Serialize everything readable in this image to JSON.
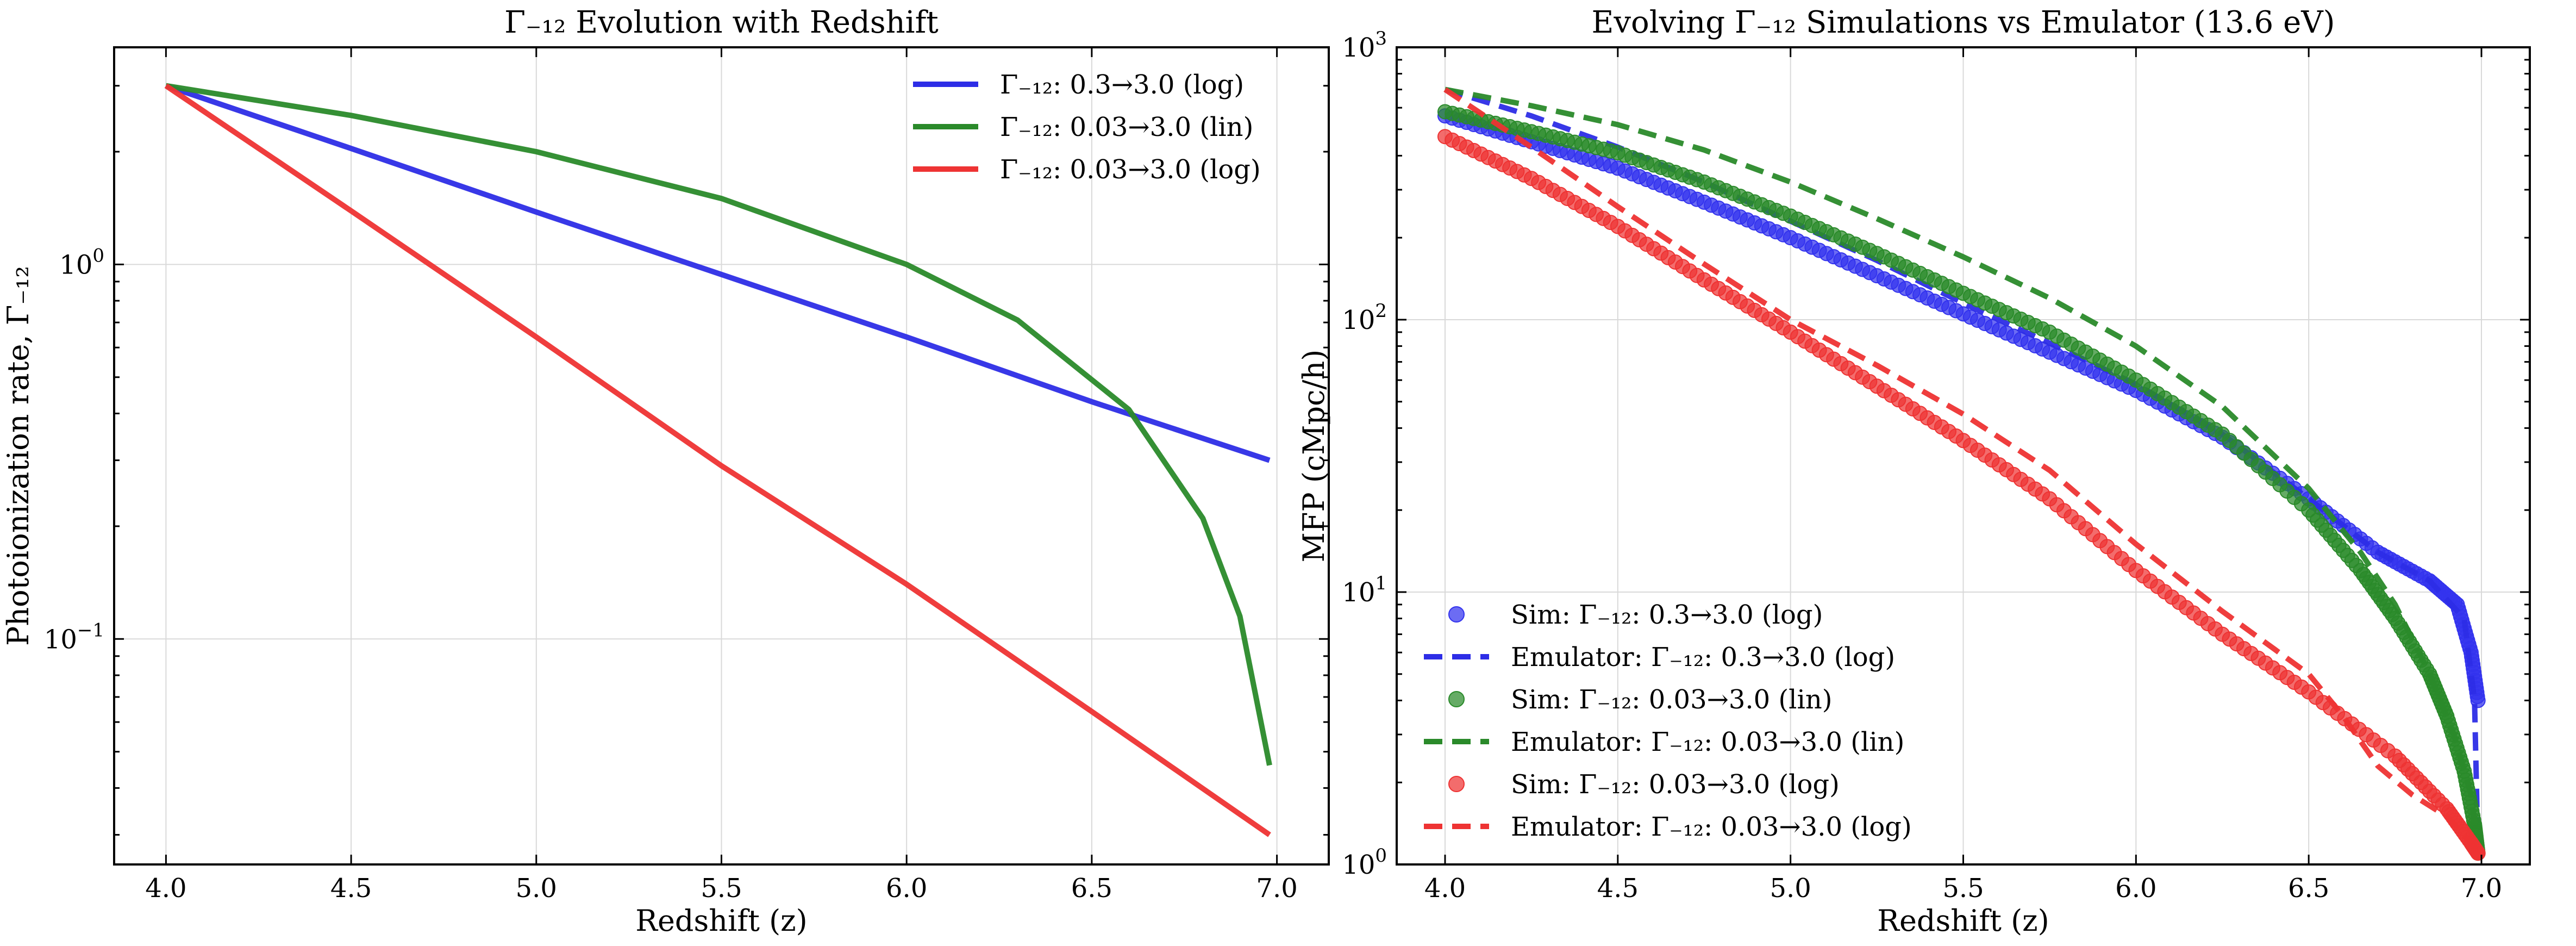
{
  "chart_data": [
    {
      "type": "line",
      "title": "Γ₋₁₂ Evolution with Redshift",
      "xlabel": "Redshift (z)",
      "ylabel": "Photoionization rate, Γ₋₁₂",
      "xscale": "linear",
      "yscale": "log",
      "xlim": [
        3.86,
        7.14
      ],
      "ylim": [
        0.025,
        3.8
      ],
      "xticks": [
        4.0,
        4.5,
        5.0,
        5.5,
        6.0,
        6.5,
        7.0
      ],
      "xtick_labels": [
        "4.0",
        "4.5",
        "5.0",
        "5.5",
        "6.0",
        "6.5",
        "7.0"
      ],
      "yticks": [
        {
          "value": 1,
          "base": "10",
          "exp": "0"
        },
        {
          "value": 0.1,
          "base": "10",
          "exp": "−1"
        }
      ],
      "grid": true,
      "legend_position": "upper-right",
      "series": [
        {
          "name": "Γ₋₁₂: 0.3→3.0 (log)",
          "color": "#2d2de6",
          "style": "solid",
          "x": [
            4.0,
            4.5,
            5.0,
            5.5,
            6.0,
            6.5,
            6.98
          ],
          "y": [
            3.0,
            2.04,
            1.38,
            0.94,
            0.64,
            0.43,
            0.3
          ]
        },
        {
          "name": "Γ₋₁₂: 0.03→3.0 (lin)",
          "color": "#2a8a2a",
          "style": "solid",
          "x": [
            4.0,
            4.5,
            5.0,
            5.5,
            6.0,
            6.3,
            6.6,
            6.8,
            6.9,
            6.95,
            6.98
          ],
          "y": [
            3.0,
            2.5,
            2.0,
            1.5,
            1.0,
            0.71,
            0.41,
            0.21,
            0.115,
            0.065,
            0.046
          ]
        },
        {
          "name": "Γ₋₁₂: 0.03→3.0 (log)",
          "color": "#ee3333",
          "style": "solid",
          "x": [
            4.0,
            4.5,
            5.0,
            5.5,
            6.0,
            6.5,
            6.98
          ],
          "y": [
            3.0,
            1.39,
            0.64,
            0.29,
            0.14,
            0.064,
            0.03
          ]
        }
      ]
    },
    {
      "type": "scatter",
      "title": "Evolving Γ₋₁₂ Simulations vs Emulator (13.6 eV)",
      "xlabel": "Redshift (z)",
      "ylabel": "MFP (cMpc/h)",
      "xscale": "linear",
      "yscale": "log",
      "xlim": [
        3.86,
        7.14
      ],
      "ylim": [
        1,
        1000
      ],
      "xticks": [
        4.0,
        4.5,
        5.0,
        5.5,
        6.0,
        6.5,
        7.0
      ],
      "xtick_labels": [
        "4.0",
        "4.5",
        "5.0",
        "5.5",
        "6.0",
        "6.5",
        "7.0"
      ],
      "yticks": [
        {
          "value": 1,
          "base": "10",
          "exp": "0"
        },
        {
          "value": 10,
          "base": "10",
          "exp": "1"
        },
        {
          "value": 100,
          "base": "10",
          "exp": "2"
        },
        {
          "value": 1000,
          "base": "10",
          "exp": "3"
        }
      ],
      "grid": true,
      "legend_position": "lower-left",
      "series": [
        {
          "name": "Sim: Γ₋₁₂: 0.3→3.0 (log)",
          "kind": "scatter",
          "color": "#3333ee",
          "x": [
            4.0,
            4.25,
            4.5,
            4.75,
            5.0,
            5.25,
            5.5,
            5.75,
            6.0,
            6.25,
            6.5,
            6.7,
            6.85,
            6.93,
            6.97,
            6.99
          ],
          "y": [
            560,
            450,
            360,
            270,
            200,
            145,
            105,
            76,
            55,
            37,
            22,
            14,
            11,
            9,
            6,
            4
          ]
        },
        {
          "name": "Emulator: Γ₋₁₂: 0.3→3.0 (log)",
          "kind": "line",
          "color": "#2d2de6",
          "style": "dashed",
          "x": [
            4.0,
            4.25,
            4.5,
            4.75,
            5.0,
            5.25,
            5.5,
            5.75,
            6.0,
            6.25,
            6.5,
            6.7,
            6.85,
            6.95,
            6.98,
            6.99
          ],
          "y": [
            700,
            560,
            430,
            320,
            230,
            165,
            115,
            82,
            58,
            38,
            22,
            14,
            11,
            8,
            4,
            1.1
          ]
        },
        {
          "name": "Sim: Γ₋₁₂: 0.03→3.0 (lin)",
          "kind": "scatter",
          "color": "#2a8a2a",
          "x": [
            4.0,
            4.25,
            4.5,
            4.75,
            5.0,
            5.25,
            5.5,
            5.75,
            6.0,
            6.25,
            6.5,
            6.65,
            6.75,
            6.85,
            6.9,
            6.95,
            6.98,
            6.99
          ],
          "y": [
            580,
            490,
            410,
            320,
            240,
            175,
            125,
            90,
            60,
            38,
            20,
            12,
            8,
            5,
            3.5,
            2.2,
            1.4,
            1.1
          ]
        },
        {
          "name": "Emulator: Γ₋₁₂: 0.03→3.0 (lin)",
          "kind": "line",
          "color": "#2a8a2a",
          "style": "dashed",
          "x": [
            4.0,
            4.25,
            4.5,
            4.75,
            5.0,
            5.25,
            5.5,
            5.75,
            6.0,
            6.25,
            6.5,
            6.65,
            6.75,
            6.85,
            6.92,
            6.97,
            6.99
          ],
          "y": [
            700,
            610,
            520,
            420,
            320,
            235,
            170,
            120,
            80,
            48,
            24,
            14,
            9,
            5,
            3,
            1.8,
            1.1
          ]
        },
        {
          "name": "Sim: Γ₋₁₂: 0.03→3.0 (log)",
          "kind": "scatter",
          "color": "#ee3333",
          "x": [
            4.0,
            4.25,
            4.5,
            4.75,
            5.0,
            5.25,
            5.5,
            5.75,
            6.0,
            6.25,
            6.5,
            6.75,
            6.9,
            6.97,
            6.99
          ],
          "y": [
            470,
            330,
            220,
            140,
            90,
            57,
            36,
            22,
            12,
            7,
            4.3,
            2.5,
            1.6,
            1.2,
            1.1
          ]
        },
        {
          "name": "Emulator: Γ₋₁₂: 0.03→3.0 (log)",
          "kind": "line",
          "color": "#ee3333",
          "style": "dashed",
          "x": [
            4.0,
            4.25,
            4.5,
            4.75,
            5.0,
            5.25,
            5.5,
            5.75,
            6.0,
            6.25,
            6.5,
            6.6,
            6.7,
            6.8,
            6.9,
            6.97,
            6.99
          ],
          "y": [
            700,
            430,
            260,
            160,
            100,
            68,
            45,
            28,
            15,
            8.5,
            5,
            3.5,
            2.3,
            1.8,
            1.5,
            1.2,
            1.1
          ]
        }
      ]
    }
  ]
}
